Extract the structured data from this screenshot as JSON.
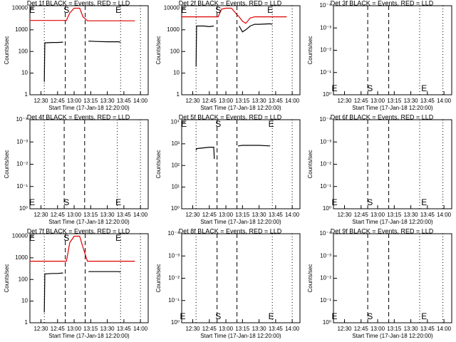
{
  "chart_data": [
    {
      "type": "line",
      "title": "Det 1f BLACK = Events, RED = LLD",
      "xlabel": "Start Time (17-Jan-18 12:20:00)",
      "ylabel": "Counts/sec",
      "log_y": true,
      "xlim": [
        0,
        107
      ],
      "ylim": [
        1,
        13000
      ],
      "xticks": [
        {
          "value": 10,
          "label": "12:30"
        },
        {
          "value": 25,
          "label": "12:45"
        },
        {
          "value": 40,
          "label": "13:00"
        },
        {
          "value": 55,
          "label": "13:15"
        },
        {
          "value": 70,
          "label": "13:30"
        },
        {
          "value": 85,
          "label": "13:45"
        },
        {
          "value": 100,
          "label": "14:00"
        }
      ],
      "yticks": [
        1,
        10,
        100,
        1000,
        10000
      ],
      "x": [
        0,
        13,
        13.5,
        20,
        25,
        30,
        33,
        36,
        40,
        45,
        48,
        52,
        53,
        60,
        70,
        80,
        82,
        90,
        95
      ],
      "series": [
        {
          "name": "LLD",
          "color": "#e00000",
          "values": [
            2700,
            2700,
            2700,
            2700,
            2700,
            2700,
            2700,
            6000,
            10000,
            10000,
            4000,
            2600,
            2600,
            2600,
            2600,
            2600,
            2600,
            2600,
            2600
          ]
        },
        {
          "name": "Events",
          "color": "#000000",
          "values": [
            null,
            4,
            250,
            260,
            260,
            270,
            null,
            null,
            null,
            null,
            null,
            null,
            300,
            290,
            280,
            280,
            270,
            null,
            null
          ]
        }
      ],
      "vlines": [
        {
          "x": 13,
          "style": "dotted"
        },
        {
          "x": 32,
          "style": "dashed"
        },
        {
          "x": 50,
          "style": "dashed"
        },
        {
          "x": 82,
          "style": "dotted"
        },
        {
          "x": 100,
          "style": "dotted"
        }
      ],
      "annotations": [
        {
          "text": "E",
          "x": 2
        },
        {
          "text": "S",
          "x": 33
        },
        {
          "text": "E",
          "x": 80
        }
      ],
      "annotation_position": "top"
    },
    {
      "type": "line",
      "title": "Det 2f BLACK = Events, RED = LLD",
      "xlabel": "Start Time (17-Jan-18 12:20:00)",
      "ylabel": "Counts/sec",
      "log_y": true,
      "xlim": [
        0,
        107
      ],
      "ylim": [
        1,
        13000
      ],
      "xticks": [
        {
          "value": 10,
          "label": "12:30"
        },
        {
          "value": 25,
          "label": "12:45"
        },
        {
          "value": 40,
          "label": "13:00"
        },
        {
          "value": 55,
          "label": "13:15"
        },
        {
          "value": 70,
          "label": "13:30"
        },
        {
          "value": 85,
          "label": "13:45"
        },
        {
          "value": 100,
          "label": "14:00"
        }
      ],
      "yticks": [
        1,
        10,
        100,
        1000,
        10000
      ],
      "x": [
        0,
        13,
        13.5,
        20,
        25,
        29,
        33,
        36,
        40,
        45,
        50,
        52,
        55,
        58,
        62,
        66,
        70,
        80,
        82,
        90,
        95
      ],
      "series": [
        {
          "name": "LLD",
          "color": "#e00000",
          "values": [
            4000,
            4000,
            4000,
            4000,
            4000,
            4000,
            4000,
            9000,
            10000,
            10000,
            5000,
            4000,
            2500,
            2000,
            3500,
            4000,
            4000,
            4000,
            4000,
            4000,
            4000
          ]
        },
        {
          "name": "Events",
          "color": "#000000",
          "values": [
            null,
            20,
            1500,
            1500,
            1400,
            1500,
            null,
            null,
            null,
            null,
            null,
            1500,
            800,
            1000,
            1500,
            1800,
            1800,
            1900,
            1800,
            null,
            null
          ]
        }
      ],
      "vlines": [
        {
          "x": 13,
          "style": "dotted"
        },
        {
          "x": 32,
          "style": "dashed"
        },
        {
          "x": 50,
          "style": "dashed"
        },
        {
          "x": 82,
          "style": "dotted"
        },
        {
          "x": 100,
          "style": "dotted"
        }
      ],
      "annotations": [
        {
          "text": "E",
          "x": 2
        },
        {
          "text": "S",
          "x": 33
        },
        {
          "text": "E",
          "x": 80
        }
      ],
      "annotation_position": "top"
    },
    {
      "type": "line",
      "title": "Det 3f BLACK = Events, RED = LLD",
      "xlabel": "Start Time (17-Jan-18 12:20:00)",
      "ylabel": "Counts/sec",
      "log_y": true,
      "xlim": [
        0,
        107
      ],
      "ylim": [
        1,
        0.0001
      ],
      "xticks": [
        {
          "value": 10,
          "label": "12:30"
        },
        {
          "value": 25,
          "label": "12:45"
        },
        {
          "value": 40,
          "label": "13:00"
        },
        {
          "value": 55,
          "label": "13:15"
        },
        {
          "value": 70,
          "label": "13:30"
        },
        {
          "value": 85,
          "label": "13:45"
        },
        {
          "value": 100,
          "label": "14:00"
        }
      ],
      "yticks": [
        {
          "value": 1,
          "label": "10⁰"
        },
        {
          "value": 0.1,
          "label": "10⁻¹"
        },
        {
          "value": 0.01,
          "label": "10⁻²"
        },
        {
          "value": 0.001,
          "label": "10⁻³"
        },
        {
          "value": 0.0001,
          "label": "10⁻⁴"
        }
      ],
      "series": [],
      "vlines": [
        {
          "x": 31,
          "style": "dashed"
        },
        {
          "x": 50,
          "style": "dashed"
        },
        {
          "x": 78,
          "style": "dotted"
        },
        {
          "x": 99,
          "style": "dotted"
        }
      ],
      "annotations": [
        {
          "text": "E",
          "x": 1
        },
        {
          "text": "S",
          "x": 33
        },
        {
          "text": "E",
          "x": 82
        }
      ],
      "annotation_position": "bottom"
    },
    {
      "type": "line",
      "title": "Det 4f BLACK = Events, RED = LLD",
      "xlabel": "Start Time (17-Jan-18 12:20:00)",
      "ylabel": "Counts/sec",
      "log_y": true,
      "xlim": [
        0,
        107
      ],
      "ylim": [
        1,
        0.0001
      ],
      "xticks": [
        {
          "value": 10,
          "label": "12:30"
        },
        {
          "value": 25,
          "label": "12:45"
        },
        {
          "value": 40,
          "label": "13:00"
        },
        {
          "value": 55,
          "label": "13:15"
        },
        {
          "value": 70,
          "label": "13:30"
        },
        {
          "value": 85,
          "label": "13:45"
        },
        {
          "value": 100,
          "label": "14:00"
        }
      ],
      "yticks": [
        {
          "value": 1,
          "label": "10⁰"
        },
        {
          "value": 0.1,
          "label": "10⁻¹"
        },
        {
          "value": 0.01,
          "label": "10⁻²"
        },
        {
          "value": 0.001,
          "label": "10⁻³"
        },
        {
          "value": 0.0001,
          "label": "10⁻⁴"
        }
      ],
      "series": [],
      "vlines": [
        {
          "x": 13,
          "style": "dotted"
        },
        {
          "x": 31,
          "style": "dashed"
        },
        {
          "x": 49.5,
          "style": "dashed"
        },
        {
          "x": 79,
          "style": "dotted"
        },
        {
          "x": 100,
          "style": "dotted"
        }
      ],
      "annotations": [
        {
          "text": "E",
          "x": 2
        },
        {
          "text": "S",
          "x": 33
        },
        {
          "text": "E",
          "x": 80
        }
      ],
      "annotation_position": "bottom"
    },
    {
      "type": "line",
      "title": "Det 5f BLACK = Events, RED = LLD",
      "xlabel": "Start Time (17-Jan-18 12:20:00)",
      "ylabel": "Counts/sec",
      "log_y": true,
      "xlim": [
        0,
        107
      ],
      "ylim": [
        1,
        13000
      ],
      "xticks": [
        {
          "value": 10,
          "label": "12:30"
        },
        {
          "value": 25,
          "label": "12:45"
        },
        {
          "value": 40,
          "label": "13:00"
        },
        {
          "value": 55,
          "label": "13:15"
        },
        {
          "value": 70,
          "label": "13:30"
        },
        {
          "value": 85,
          "label": "13:45"
        },
        {
          "value": 100,
          "label": "14:00"
        }
      ],
      "yticks": [
        {
          "value": 1,
          "label": "10⁰"
        },
        {
          "value": 10,
          "label": "10¹"
        },
        {
          "value": 100,
          "label": "10²"
        },
        {
          "value": 1000,
          "label": "10³"
        },
        {
          "value": 10000,
          "label": "10⁴"
        }
      ],
      "x": [
        0,
        13,
        13.5,
        20,
        25,
        29,
        29.5,
        40,
        51,
        55,
        60,
        70,
        80,
        95
      ],
      "series": [
        {
          "name": "Events",
          "color": "#000000",
          "values": [
            null,
            500,
            600,
            650,
            700,
            700,
            200,
            null,
            800,
            850,
            850,
            850,
            800,
            null
          ]
        }
      ],
      "vlines": [
        {
          "x": 13,
          "style": "dotted"
        },
        {
          "x": 32,
          "style": "dashed"
        },
        {
          "x": 50,
          "style": "dashed"
        },
        {
          "x": 82,
          "style": "dotted"
        },
        {
          "x": 100,
          "style": "dotted"
        }
      ],
      "annotations": [
        {
          "text": "E",
          "x": 2
        },
        {
          "text": "S",
          "x": 33
        },
        {
          "text": "E",
          "x": 81
        }
      ],
      "annotation_position": "top"
    },
    {
      "type": "line",
      "title": "Det 6f BLACK = Events, RED = LLD",
      "xlabel": "Start Time (17-Jan-18 12:20:00)",
      "ylabel": "Counts/sec",
      "log_y": true,
      "xlim": [
        0,
        107
      ],
      "ylim": [
        1,
        0.0001
      ],
      "xticks": [
        {
          "value": 10,
          "label": "12:30"
        },
        {
          "value": 25,
          "label": "12:45"
        },
        {
          "value": 40,
          "label": "13:00"
        },
        {
          "value": 55,
          "label": "13:15"
        },
        {
          "value": 70,
          "label": "13:30"
        },
        {
          "value": 85,
          "label": "13:45"
        },
        {
          "value": 100,
          "label": "14:00"
        }
      ],
      "yticks": [
        {
          "value": 1,
          "label": "10⁰"
        },
        {
          "value": 0.1,
          "label": "10⁻¹"
        },
        {
          "value": 0.01,
          "label": "10⁻²"
        },
        {
          "value": 0.001,
          "label": "10⁻³"
        },
        {
          "value": 0.0001,
          "label": "10⁻⁴"
        }
      ],
      "series": [],
      "vlines": [
        {
          "x": 31,
          "style": "dashed"
        },
        {
          "x": 50,
          "style": "dashed"
        },
        {
          "x": 78,
          "style": "dotted"
        },
        {
          "x": 99,
          "style": "dotted"
        }
      ],
      "annotations": [
        {
          "text": "E",
          "x": 1
        },
        {
          "text": "S",
          "x": 33
        },
        {
          "text": "E",
          "x": 82
        }
      ],
      "annotation_position": "bottom"
    },
    {
      "type": "line",
      "title": "Det 7f BLACK = Events, RED = LLD",
      "xlabel": "Start Time (17-Jan-18 12:20:00)",
      "ylabel": "Counts/sec",
      "log_y": true,
      "xlim": [
        0,
        107
      ],
      "ylim": [
        1,
        13000
      ],
      "xticks": [
        {
          "value": 10,
          "label": "12:30"
        },
        {
          "value": 25,
          "label": "12:45"
        },
        {
          "value": 40,
          "label": "13:00"
        },
        {
          "value": 55,
          "label": "13:15"
        },
        {
          "value": 70,
          "label": "13:30"
        },
        {
          "value": 85,
          "label": "13:45"
        },
        {
          "value": 100,
          "label": "14:00"
        }
      ],
      "yticks": [
        1,
        10,
        100,
        1000,
        10000
      ],
      "x": [
        0,
        13,
        13.5,
        20,
        25,
        30,
        33,
        36,
        40,
        45,
        48,
        52,
        53,
        60,
        70,
        80,
        82,
        90,
        95
      ],
      "series": [
        {
          "name": "LLD",
          "color": "#e00000",
          "values": [
            700,
            700,
            700,
            700,
            700,
            700,
            700,
            5000,
            10000,
            10000,
            3000,
            700,
            700,
            700,
            700,
            700,
            700,
            700,
            700
          ]
        },
        {
          "name": "Events",
          "color": "#000000",
          "values": [
            null,
            3,
            180,
            190,
            190,
            200,
            null,
            null,
            null,
            null,
            null,
            null,
            230,
            230,
            230,
            230,
            220,
            null,
            null
          ]
        }
      ],
      "vlines": [
        {
          "x": 13,
          "style": "dotted"
        },
        {
          "x": 32,
          "style": "dashed"
        },
        {
          "x": 50,
          "style": "dashed"
        },
        {
          "x": 82,
          "style": "dotted"
        },
        {
          "x": 100,
          "style": "dotted"
        }
      ],
      "annotations": [
        {
          "text": "E",
          "x": 2
        },
        {
          "text": "S",
          "x": 33
        },
        {
          "text": "E",
          "x": 80
        }
      ],
      "annotation_position": "top"
    },
    {
      "type": "line",
      "title": "Det 8f BLACK = Events, RED = LLD",
      "xlabel": "Start Time (17-Jan-18 12:20:00)",
      "ylabel": "Counts/sec",
      "log_y": true,
      "xlim": [
        0,
        107
      ],
      "ylim": [
        1,
        0.0001
      ],
      "xticks": [
        {
          "value": 10,
          "label": "12:30"
        },
        {
          "value": 25,
          "label": "12:45"
        },
        {
          "value": 40,
          "label": "13:00"
        },
        {
          "value": 55,
          "label": "13:15"
        },
        {
          "value": 70,
          "label": "13:30"
        },
        {
          "value": 85,
          "label": "13:45"
        },
        {
          "value": 100,
          "label": "14:00"
        }
      ],
      "yticks": [
        {
          "value": 1,
          "label": "10⁰"
        },
        {
          "value": 0.1,
          "label": "10⁻¹"
        },
        {
          "value": 0.01,
          "label": "10⁻²"
        },
        {
          "value": 0.001,
          "label": "10⁻³"
        },
        {
          "value": 0.0001,
          "label": "10⁻⁴"
        }
      ],
      "series": [],
      "vlines": [
        {
          "x": 13,
          "style": "dotted"
        },
        {
          "x": 32,
          "style": "dashed"
        },
        {
          "x": 50,
          "style": "dashed"
        },
        {
          "x": 82,
          "style": "dotted"
        },
        {
          "x": 100,
          "style": "dotted"
        }
      ],
      "annotations": [
        {
          "text": "E",
          "x": 1
        },
        {
          "text": "S",
          "x": 33
        },
        {
          "text": "E",
          "x": 81
        }
      ],
      "annotation_position": "bottom"
    },
    {
      "type": "line",
      "title": "Det 9f BLACK = Events, RED = LLD",
      "xlabel": "Start Time (17-Jan-18 12:20:00)",
      "ylabel": "Counts/sec",
      "log_y": true,
      "xlim": [
        0,
        107
      ],
      "ylim": [
        1,
        0.0001
      ],
      "xticks": [
        {
          "value": 10,
          "label": "12:30"
        },
        {
          "value": 25,
          "label": "12:45"
        },
        {
          "value": 40,
          "label": "13:00"
        },
        {
          "value": 55,
          "label": "13:15"
        },
        {
          "value": 70,
          "label": "13:30"
        },
        {
          "value": 85,
          "label": "13:45"
        },
        {
          "value": 100,
          "label": "14:00"
        }
      ],
      "yticks": [
        {
          "value": 1,
          "label": "10⁰"
        },
        {
          "value": 0.1,
          "label": "10⁻¹"
        },
        {
          "value": 0.01,
          "label": "10⁻²"
        },
        {
          "value": 0.001,
          "label": "10⁻³"
        },
        {
          "value": 0.0001,
          "label": "10⁻⁴"
        }
      ],
      "series": [],
      "vlines": [
        {
          "x": 31,
          "style": "dashed"
        },
        {
          "x": 50,
          "style": "dashed"
        },
        {
          "x": 78,
          "style": "dotted"
        },
        {
          "x": 99,
          "style": "dotted"
        }
      ],
      "annotations": [
        {
          "text": "E",
          "x": 1
        },
        {
          "text": "S",
          "x": 33
        },
        {
          "text": "E",
          "x": 82
        }
      ],
      "annotation_position": "bottom"
    }
  ]
}
